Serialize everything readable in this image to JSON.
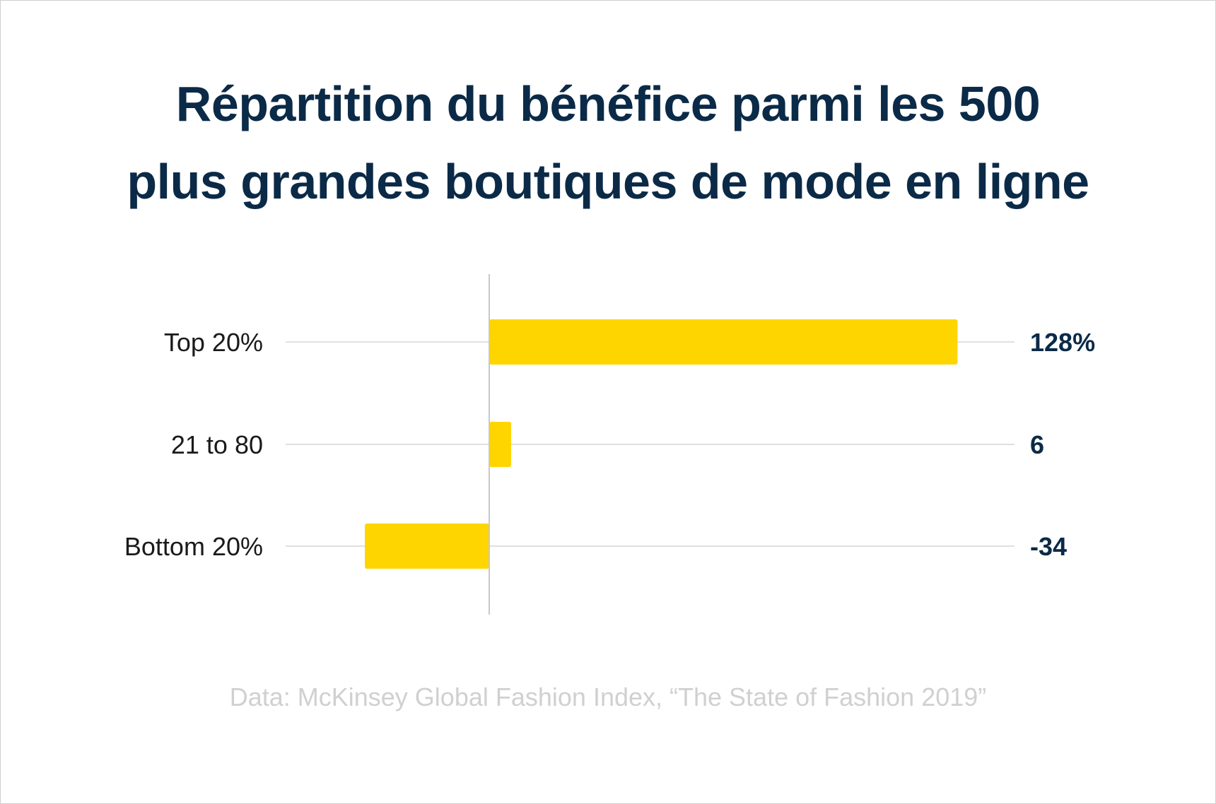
{
  "chart_data": {
    "type": "bar",
    "orientation": "horizontal",
    "title_lines": [
      "Répartition du bénéfice parmi les 500",
      "plus grandes boutiques de mode en ligne"
    ],
    "categories": [
      "Top 20%",
      "21 to 80",
      "Bottom 20%"
    ],
    "values": [
      128,
      6,
      -34
    ],
    "value_labels": [
      "128%",
      "6",
      "-34"
    ],
    "xlim": [
      -34,
      128
    ],
    "grid": "row guide lines",
    "legend": "none",
    "source": "Data: McKinsey Global Fashion Index, “The State of Fashion 2019”"
  },
  "colors": {
    "bar": "#FFD500",
    "title": "#0b2a47",
    "value_label": "#0b2a47",
    "category_label": "#1a1a1a",
    "axis": "#c8c8c8",
    "gridline": "#d5d5d5",
    "source": "#d0d0d0"
  }
}
